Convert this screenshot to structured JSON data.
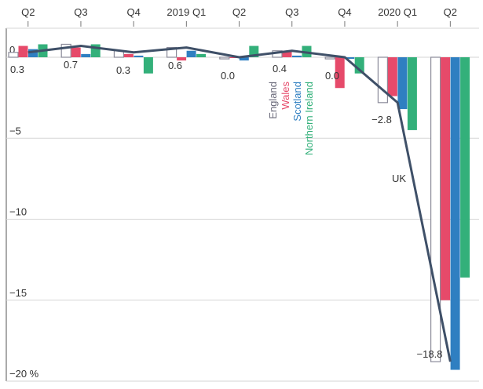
{
  "chart_data": {
    "type": "bar",
    "categories": [
      "Q2",
      "Q3",
      "Q4",
      "2019 Q1",
      "Q2",
      "Q3",
      "Q4",
      "2020 Q1",
      "Q2"
    ],
    "ylim": [
      -20,
      1.5
    ],
    "yticks": [
      {
        "value": 0,
        "label": "0"
      },
      {
        "value": -5,
        "label": "−5"
      },
      {
        "value": -10,
        "label": "−10"
      },
      {
        "value": -15,
        "label": "−15"
      },
      {
        "value": -20,
        "label": "−20 %"
      }
    ],
    "series": [
      {
        "name": "England",
        "color": "#ffffff",
        "stroke": "#8a8a99",
        "values": [
          0.3,
          0.8,
          0.4,
          0.6,
          -0.1,
          0.4,
          -0.1,
          -2.8,
          -18.8
        ]
      },
      {
        "name": "Wales",
        "color": "#e64a6a",
        "stroke": "#e64a6a",
        "values": [
          0.7,
          0.6,
          0.2,
          -0.2,
          0.0,
          0.4,
          -1.9,
          -2.4,
          -15.0
        ]
      },
      {
        "name": "Scotland",
        "color": "#2f7fc1",
        "stroke": "#2f7fc1",
        "values": [
          0.5,
          0.2,
          0.1,
          0.4,
          -0.2,
          0.1,
          -0.1,
          -3.2,
          -19.3
        ]
      },
      {
        "name": "Northern Ireland",
        "color": "#33b07a",
        "stroke": "#33b07a",
        "values": [
          0.8,
          0.8,
          -1.0,
          0.2,
          0.7,
          0.7,
          -1.0,
          -4.5,
          -13.6
        ]
      }
    ],
    "uk_line": {
      "name": "UK",
      "color": "#3f5068",
      "values": [
        0.3,
        0.7,
        0.3,
        0.6,
        0.0,
        0.4,
        0.0,
        -2.8,
        -18.8
      ]
    },
    "value_labels": [
      "0.3",
      "0.7",
      "0.3",
      "0.6",
      "0.0",
      "0.4",
      "0.0",
      "−2.8",
      "−18.8"
    ],
    "legend_placement": "inline-center",
    "grid": true
  }
}
